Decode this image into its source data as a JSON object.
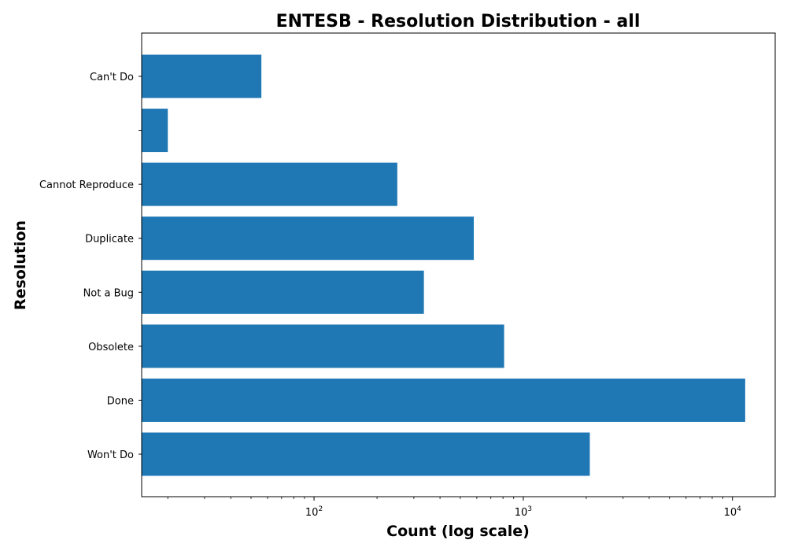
{
  "chart_data": {
    "type": "bar",
    "orientation": "horizontal",
    "title": "ENTESB - Resolution Distribution - all",
    "xlabel": "Count (log scale)",
    "ylabel": "Resolution",
    "xscale": "log",
    "xlim": [
      15,
      16000
    ],
    "x_ticks": [
      {
        "base": "10",
        "exp": "2",
        "value": 100
      },
      {
        "base": "10",
        "exp": "3",
        "value": 1000
      },
      {
        "base": "10",
        "exp": "4",
        "value": 10000
      }
    ],
    "categories": [
      "Won't Do",
      "Done",
      "Obsolete",
      "Not a Bug",
      "Duplicate",
      "Cannot Reproduce",
      "",
      "Can't Do"
    ],
    "values": [
      2080,
      11500,
      810,
      335,
      580,
      250,
      20,
      56
    ],
    "bar_color": "#1f77b4",
    "grid": false,
    "legend": "none"
  }
}
